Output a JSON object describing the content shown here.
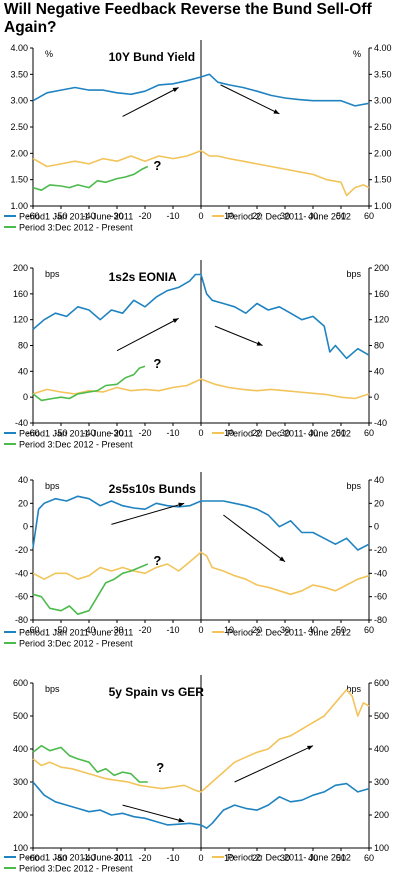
{
  "title": "Will Negative Feedback Reverse the Bund Sell-Off Again?",
  "legend_labels": {
    "period1": "Period1 Jan 2011-June 2011",
    "period2": "Period 2: Dec 2011- June 2012",
    "period3": "Period 3:Dec 2012 - Present"
  },
  "colors": {
    "period1": "#1f83c1",
    "period2": "#f2c45a",
    "period3": "#4cbb4c",
    "arrow": "#000000"
  },
  "chart_data": [
    {
      "type": "line",
      "title": "10Y Bund Yield",
      "ylabel_left": "%",
      "ylabel_right": "%",
      "xlim": [
        -60,
        60
      ],
      "ylim": [
        1.0,
        4.0
      ],
      "yticks": [
        "1.00",
        "1.50",
        "2.00",
        "2.50",
        "3.00",
        "3.50",
        "4.00"
      ],
      "xticks": [
        "-60",
        "-50",
        "-40",
        "-30",
        "-20",
        "-10",
        "0",
        "10",
        "20",
        "30",
        "40",
        "50",
        "60"
      ],
      "annotation": "?",
      "series": [
        {
          "name": "Period1 Jan 2011-June 2011",
          "color": "#1f83c1",
          "x": [
            -60,
            -55,
            -50,
            -45,
            -40,
            -35,
            -30,
            -25,
            -20,
            -15,
            -10,
            -5,
            0,
            3,
            6,
            10,
            15,
            20,
            25,
            30,
            35,
            40,
            45,
            50,
            55,
            60
          ],
          "y": [
            3.0,
            3.15,
            3.2,
            3.25,
            3.2,
            3.2,
            3.15,
            3.12,
            3.18,
            3.3,
            3.32,
            3.38,
            3.45,
            3.5,
            3.35,
            3.3,
            3.25,
            3.18,
            3.1,
            3.05,
            3.02,
            3.0,
            3.0,
            3.0,
            2.9,
            2.95
          ]
        },
        {
          "name": "Period 2: Dec 2011- June 2012",
          "color": "#f2c45a",
          "x": [
            -60,
            -55,
            -50,
            -45,
            -40,
            -35,
            -30,
            -25,
            -20,
            -15,
            -10,
            -5,
            0,
            3,
            6,
            10,
            15,
            20,
            25,
            30,
            35,
            40,
            45,
            50,
            52,
            55,
            58,
            60
          ],
          "y": [
            1.9,
            1.75,
            1.8,
            1.85,
            1.8,
            1.9,
            1.85,
            1.95,
            1.85,
            1.95,
            1.9,
            1.95,
            2.05,
            1.95,
            1.95,
            1.9,
            1.85,
            1.8,
            1.75,
            1.7,
            1.65,
            1.6,
            1.5,
            1.45,
            1.2,
            1.35,
            1.4,
            1.35
          ]
        },
        {
          "name": "Period 3:Dec 2012 - Present",
          "color": "#4cbb4c",
          "x": [
            -60,
            -57,
            -54,
            -50,
            -47,
            -44,
            -40,
            -37,
            -34,
            -30,
            -27,
            -24,
            -21,
            -19
          ],
          "y": [
            1.35,
            1.3,
            1.4,
            1.38,
            1.35,
            1.4,
            1.35,
            1.48,
            1.45,
            1.52,
            1.55,
            1.6,
            1.7,
            1.75
          ]
        }
      ],
      "arrows": [
        {
          "from": [
            -28,
            2.7
          ],
          "to": [
            -8,
            3.25
          ]
        },
        {
          "from": [
            7,
            3.3
          ],
          "to": [
            28,
            2.75
          ]
        }
      ]
    },
    {
      "type": "line",
      "title": "1s2s EONIA",
      "ylabel_left": "bps",
      "ylabel_right": "bps",
      "xlim": [
        -60,
        60
      ],
      "ylim": [
        -40,
        200
      ],
      "yticks": [
        "-40",
        "0",
        "40",
        "80",
        "120",
        "160",
        "200"
      ],
      "xticks": [
        "-60",
        "-50",
        "-40",
        "-30",
        "-20",
        "-10",
        "0",
        "10",
        "20",
        "30",
        "40",
        "50",
        "60"
      ],
      "annotation": "?",
      "series": [
        {
          "name": "Period1 Jan 2011-June 2011",
          "color": "#1f83c1",
          "x": [
            -60,
            -56,
            -52,
            -48,
            -44,
            -40,
            -36,
            -32,
            -28,
            -24,
            -20,
            -16,
            -12,
            -8,
            -4,
            -2,
            0,
            2,
            4,
            8,
            12,
            16,
            20,
            24,
            28,
            32,
            36,
            40,
            44,
            46,
            48,
            52,
            56,
            60
          ],
          "y": [
            105,
            120,
            130,
            125,
            140,
            135,
            120,
            135,
            130,
            150,
            140,
            155,
            165,
            170,
            180,
            190,
            190,
            160,
            150,
            145,
            140,
            130,
            145,
            135,
            140,
            130,
            120,
            125,
            110,
            70,
            80,
            60,
            75,
            65
          ]
        },
        {
          "name": "Period 2: Dec 2011- June 2012",
          "color": "#f2c45a",
          "x": [
            -60,
            -55,
            -50,
            -45,
            -40,
            -35,
            -30,
            -25,
            -20,
            -15,
            -10,
            -5,
            0,
            5,
            10,
            15,
            20,
            25,
            30,
            35,
            40,
            45,
            50,
            55,
            60
          ],
          "y": [
            5,
            12,
            8,
            5,
            10,
            8,
            15,
            10,
            12,
            10,
            15,
            18,
            28,
            20,
            15,
            12,
            10,
            12,
            10,
            8,
            6,
            4,
            0,
            -2,
            5
          ]
        },
        {
          "name": "Period 3:Dec 2012 - Present",
          "color": "#4cbb4c",
          "x": [
            -60,
            -57,
            -53,
            -50,
            -47,
            -44,
            -40,
            -37,
            -34,
            -30,
            -27,
            -24,
            -22,
            -20
          ],
          "y": [
            5,
            -5,
            -2,
            0,
            -2,
            5,
            8,
            10,
            18,
            20,
            30,
            35,
            45,
            48
          ]
        }
      ],
      "arrows": [
        {
          "from": [
            -30,
            72
          ],
          "to": [
            -8,
            122
          ]
        },
        {
          "from": [
            5,
            110
          ],
          "to": [
            22,
            80
          ]
        }
      ]
    },
    {
      "type": "line",
      "title": "2s5s10s Bunds",
      "ylabel_left": "bps",
      "ylabel_right": "bps",
      "xlim": [
        -60,
        60
      ],
      "ylim": [
        -80,
        40
      ],
      "yticks": [
        "-80",
        "-60",
        "-40",
        "-20",
        "0",
        "20",
        "40"
      ],
      "xticks": [
        "-60",
        "-50",
        "-40",
        "-30",
        "-20",
        "-10",
        "0",
        "10",
        "20",
        "30",
        "40",
        "50",
        "60"
      ],
      "annotation": "?",
      "series": [
        {
          "name": "Period1 Jan 2011-June 2011",
          "color": "#1f83c1",
          "x": [
            -60,
            -58,
            -56,
            -52,
            -48,
            -44,
            -40,
            -36,
            -32,
            -28,
            -24,
            -20,
            -16,
            -12,
            -8,
            -4,
            0,
            4,
            8,
            12,
            16,
            20,
            24,
            28,
            32,
            36,
            40,
            44,
            48,
            52,
            56,
            60
          ],
          "y": [
            -18,
            15,
            20,
            24,
            22,
            26,
            24,
            18,
            22,
            18,
            16,
            15,
            20,
            18,
            17,
            18,
            22,
            22,
            22,
            20,
            18,
            15,
            10,
            0,
            5,
            -5,
            -5,
            -10,
            -15,
            -10,
            -20,
            -15
          ]
        },
        {
          "name": "Period 2: Dec 2011- June 2012",
          "color": "#f2c45a",
          "x": [
            -60,
            -56,
            -52,
            -48,
            -44,
            -40,
            -36,
            -32,
            -28,
            -24,
            -20,
            -16,
            -12,
            -8,
            -4,
            0,
            2,
            4,
            8,
            12,
            16,
            20,
            24,
            28,
            32,
            36,
            40,
            44,
            48,
            52,
            56,
            60
          ],
          "y": [
            -40,
            -45,
            -40,
            -40,
            -45,
            -42,
            -35,
            -38,
            -35,
            -38,
            -40,
            -35,
            -32,
            -38,
            -30,
            -22,
            -25,
            -35,
            -38,
            -42,
            -45,
            -50,
            -52,
            -55,
            -58,
            -55,
            -50,
            -52,
            -55,
            -50,
            -45,
            -42
          ]
        },
        {
          "name": "Period 3:Dec 2012 - Present",
          "color": "#4cbb4c",
          "x": [
            -60,
            -57,
            -54,
            -50,
            -47,
            -44,
            -40,
            -37,
            -34,
            -31,
            -28,
            -25,
            -22,
            -19
          ],
          "y": [
            -58,
            -60,
            -70,
            -72,
            -68,
            -75,
            -72,
            -60,
            -48,
            -45,
            -40,
            -38,
            -35,
            -32
          ]
        }
      ],
      "arrows": [
        {
          "from": [
            -32,
            2
          ],
          "to": [
            -6,
            20
          ]
        },
        {
          "from": [
            8,
            10
          ],
          "to": [
            30,
            -30
          ]
        }
      ]
    },
    {
      "type": "line",
      "title": "5y Spain vs GER",
      "ylabel_left": "bps",
      "ylabel_right": "bps",
      "xlim": [
        -60,
        60
      ],
      "ylim": [
        100,
        600
      ],
      "yticks": [
        "100",
        "200",
        "300",
        "400",
        "500",
        "600"
      ],
      "xticks": [
        "-60",
        "-50",
        "-40",
        "-30",
        "-20",
        "-10",
        "0",
        "10",
        "20",
        "30",
        "40",
        "50",
        "60"
      ],
      "annotation": "?",
      "series": [
        {
          "name": "Period1 Jan 2011-June 2011",
          "color": "#1f83c1",
          "x": [
            -60,
            -56,
            -52,
            -48,
            -44,
            -40,
            -36,
            -32,
            -28,
            -24,
            -20,
            -16,
            -12,
            -8,
            -4,
            0,
            2,
            4,
            8,
            12,
            16,
            20,
            24,
            28,
            32,
            36,
            40,
            44,
            48,
            52,
            56,
            60
          ],
          "y": [
            300,
            260,
            240,
            230,
            220,
            210,
            215,
            200,
            205,
            195,
            190,
            180,
            170,
            172,
            175,
            170,
            160,
            175,
            215,
            230,
            220,
            215,
            230,
            255,
            240,
            245,
            260,
            270,
            290,
            295,
            270,
            280
          ]
        },
        {
          "name": "Period 2: Dec 2011- June 2012",
          "color": "#f2c45a",
          "x": [
            -60,
            -57,
            -54,
            -50,
            -46,
            -42,
            -38,
            -34,
            -30,
            -26,
            -22,
            -18,
            -14,
            -10,
            -6,
            -2,
            0,
            4,
            8,
            12,
            16,
            20,
            24,
            28,
            32,
            36,
            40,
            44,
            48,
            52,
            54,
            56,
            58,
            60
          ],
          "y": [
            370,
            350,
            360,
            345,
            340,
            330,
            320,
            310,
            305,
            300,
            290,
            285,
            280,
            285,
            290,
            275,
            270,
            300,
            330,
            360,
            375,
            390,
            400,
            430,
            440,
            460,
            480,
            500,
            540,
            580,
            560,
            500,
            540,
            530
          ]
        },
        {
          "name": "Period 3:Dec 2012 - Present",
          "color": "#4cbb4c",
          "x": [
            -60,
            -57,
            -54,
            -50,
            -47,
            -44,
            -40,
            -37,
            -34,
            -31,
            -28,
            -25,
            -22,
            -19
          ],
          "y": [
            390,
            410,
            395,
            405,
            380,
            370,
            360,
            330,
            340,
            320,
            330,
            325,
            300,
            300
          ]
        }
      ],
      "arrows": [
        {
          "from": [
            -28,
            230
          ],
          "to": [
            -6,
            180
          ]
        },
        {
          "from": [
            12,
            300
          ],
          "to": [
            40,
            410
          ]
        }
      ]
    }
  ]
}
